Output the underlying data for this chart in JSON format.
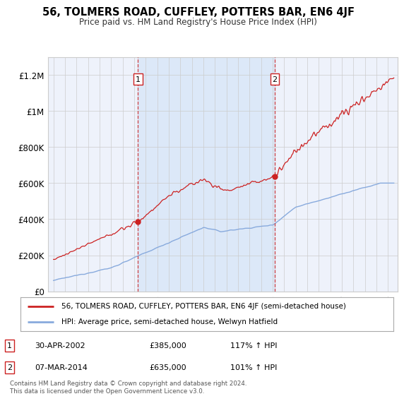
{
  "title": "56, TOLMERS ROAD, CUFFLEY, POTTERS BAR, EN6 4JF",
  "subtitle": "Price paid vs. HM Land Registry's House Price Index (HPI)",
  "plot_bg_color": "#eef2fb",
  "shade_color": "#dce8f8",
  "red_color": "#cc2222",
  "blue_color": "#88aadd",
  "marker1_date_x": 2002.33,
  "marker1_date_label": "30-APR-2002",
  "marker1_price": 385000,
  "marker1_price_label": "£385,000",
  "marker1_hpi": "117% ↑ HPI",
  "marker2_date_x": 2014.17,
  "marker2_date_label": "07-MAR-2014",
  "marker2_price": 635000,
  "marker2_price_label": "£635,000",
  "marker2_hpi": "101% ↑ HPI",
  "legend_line1": "56, TOLMERS ROAD, CUFFLEY, POTTERS BAR, EN6 4JF (semi-detached house)",
  "legend_line2": "HPI: Average price, semi-detached house, Welwyn Hatfield",
  "footer": "Contains HM Land Registry data © Crown copyright and database right 2024.\nThis data is licensed under the Open Government Licence v3.0.",
  "ylim": [
    0,
    1300000
  ],
  "xlim_start": 1994.5,
  "xlim_end": 2024.8,
  "yticks": [
    0,
    200000,
    400000,
    600000,
    800000,
    1000000,
    1200000
  ],
  "ytick_labels": [
    "£0",
    "£200K",
    "£400K",
    "£600K",
    "£800K",
    "£1M",
    "£1.2M"
  ]
}
